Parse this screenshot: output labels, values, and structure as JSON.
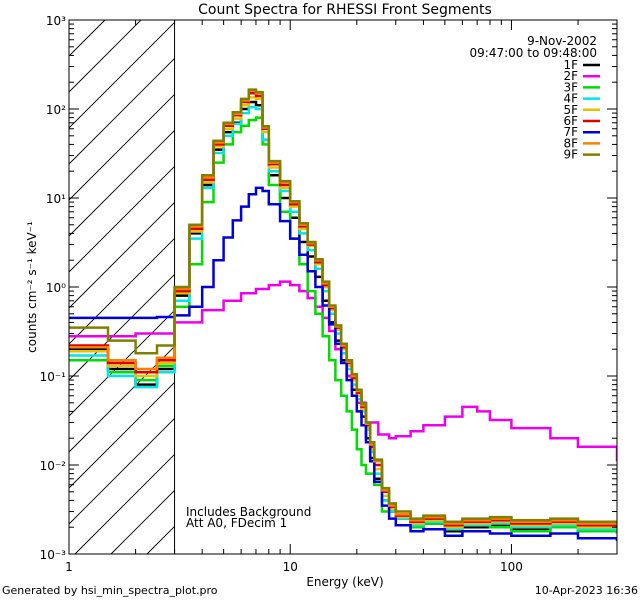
{
  "chart_data": {
    "type": "line",
    "title": "Count Spectra for RHESSI Front Segments",
    "xlabel": "Energy (keV)",
    "ylabel": "counts cm⁻² s⁻¹ keV⁻¹",
    "x_scale": "log",
    "y_scale": "log",
    "xlim": [
      1,
      300
    ],
    "ylim": [
      0.001,
      1000
    ],
    "x_ticks": [
      {
        "value": 1,
        "label": "1"
      },
      {
        "value": 10,
        "label": "10"
      },
      {
        "value": 100,
        "label": "100"
      }
    ],
    "y_ticks": [
      {
        "value": 0.001,
        "label": "10⁻³"
      },
      {
        "value": 0.01,
        "label": "10⁻²"
      },
      {
        "value": 0.1,
        "label": "10⁻¹"
      },
      {
        "value": 1,
        "label": "10⁰"
      },
      {
        "value": 10,
        "label": "10¹"
      },
      {
        "value": 100,
        "label": "10²"
      },
      {
        "value": 1000,
        "label": "10³"
      }
    ],
    "date_label": "9-Nov-2002",
    "time_range_label": "09:47:00 to 09:48:00",
    "shaded_region": {
      "x_from": 1,
      "x_to": 3
    },
    "annotations": [
      "Includes Background",
      "Att A0, FDecim 1"
    ],
    "series": [
      {
        "name": "1F",
        "color": "#000000",
        "x": [
          1,
          1.5,
          2,
          2.5,
          3,
          3.5,
          4,
          4.5,
          5,
          5.5,
          6,
          6.5,
          7,
          7.5,
          8,
          9,
          10,
          11,
          12,
          13,
          14,
          15,
          16,
          17,
          18,
          19,
          20,
          21,
          22,
          23,
          24,
          26,
          28,
          30,
          35,
          40,
          50,
          60,
          80,
          100,
          150,
          200,
          300
        ],
        "y": [
          0.2,
          0.12,
          0.08,
          0.12,
          0.8,
          4.0,
          14,
          35,
          55,
          70,
          100,
          120,
          110,
          45,
          18,
          10,
          6,
          3.2,
          2.2,
          1.3,
          0.7,
          0.4,
          0.25,
          0.15,
          0.1,
          0.07,
          0.05,
          0.035,
          0.02,
          0.012,
          0.007,
          0.004,
          0.003,
          0.0025,
          0.002,
          0.0022,
          0.0018,
          0.002,
          0.0021,
          0.0019,
          0.002,
          0.0018,
          0.0017
        ]
      },
      {
        "name": "2F",
        "color": "#ee00ee",
        "x": [
          1,
          2,
          3,
          4,
          5,
          6,
          7,
          8,
          9,
          10,
          11,
          12,
          13,
          14,
          15,
          16,
          18,
          20,
          22,
          25,
          28,
          30,
          35,
          40,
          50,
          60,
          70,
          80,
          100,
          150,
          200,
          300
        ],
        "y": [
          0.28,
          0.3,
          0.4,
          0.55,
          0.7,
          0.85,
          0.95,
          1.05,
          1.15,
          1.05,
          0.9,
          0.75,
          0.6,
          0.45,
          0.32,
          0.2,
          0.1,
          0.05,
          0.03,
          0.022,
          0.02,
          0.021,
          0.024,
          0.028,
          0.035,
          0.045,
          0.04,
          0.032,
          0.026,
          0.02,
          0.016,
          0.011
        ]
      },
      {
        "name": "3F",
        "color": "#00dd00",
        "x": [
          1,
          1.5,
          2,
          2.5,
          3,
          3.5,
          4,
          4.5,
          5,
          5.5,
          6,
          6.5,
          7,
          7.5,
          8,
          9,
          10,
          11,
          12,
          13,
          14,
          15,
          16,
          17,
          18,
          19,
          20,
          21,
          22,
          24,
          26,
          30,
          35,
          40,
          50,
          60,
          80,
          100,
          150,
          200,
          300
        ],
        "y": [
          0.15,
          0.11,
          0.09,
          0.13,
          0.6,
          1.8,
          9,
          25,
          40,
          55,
          65,
          75,
          80,
          40,
          14,
          7,
          3.5,
          1.8,
          0.9,
          0.5,
          0.28,
          0.15,
          0.09,
          0.06,
          0.04,
          0.025,
          0.015,
          0.01,
          0.008,
          0.006,
          0.003,
          0.0025,
          0.002,
          0.0022,
          0.0019,
          0.0021,
          0.002,
          0.0018,
          0.002,
          0.0018,
          0.0017
        ]
      },
      {
        "name": "4F",
        "color": "#00e5e5",
        "x": [
          1,
          1.5,
          2,
          2.5,
          3,
          3.5,
          4,
          4.5,
          5,
          5.5,
          6,
          6.5,
          7,
          7.5,
          8,
          9,
          10,
          11,
          12,
          13,
          14,
          15,
          16,
          17,
          18,
          19,
          20,
          21,
          22,
          23,
          24,
          26,
          28,
          30,
          35,
          40,
          50,
          60,
          80,
          100,
          150,
          200,
          300
        ],
        "y": [
          0.17,
          0.1,
          0.075,
          0.11,
          0.7,
          3.5,
          13,
          32,
          50,
          68,
          90,
          105,
          100,
          45,
          20,
          12,
          7,
          4,
          2.6,
          1.6,
          0.9,
          0.5,
          0.3,
          0.18,
          0.12,
          0.08,
          0.055,
          0.04,
          0.025,
          0.014,
          0.008,
          0.004,
          0.003,
          0.0025,
          0.0021,
          0.0023,
          0.0019,
          0.0021,
          0.0022,
          0.002,
          0.0021,
          0.0019,
          0.0018
        ]
      },
      {
        "name": "5F",
        "color": "#e5c300",
        "x": [
          1,
          1.5,
          2,
          2.5,
          3,
          3.5,
          4,
          4.5,
          5,
          5.5,
          6,
          6.5,
          7,
          7.5,
          8,
          9,
          10,
          11,
          12,
          13,
          14,
          15,
          16,
          17,
          18,
          19,
          20,
          21,
          22,
          23,
          24,
          26,
          28,
          30,
          35,
          40,
          50,
          60,
          80,
          100,
          150,
          200,
          300
        ],
        "y": [
          0.19,
          0.13,
          0.1,
          0.14,
          0.85,
          4.2,
          15,
          38,
          60,
          78,
          110,
          135,
          130,
          55,
          22,
          13,
          8,
          4.5,
          2.9,
          1.8,
          1.0,
          0.55,
          0.33,
          0.2,
          0.13,
          0.09,
          0.06,
          0.042,
          0.026,
          0.015,
          0.009,
          0.0045,
          0.0032,
          0.0026,
          0.0022,
          0.0024,
          0.002,
          0.0022,
          0.0023,
          0.0021,
          0.0022,
          0.002,
          0.0019
        ]
      },
      {
        "name": "6F",
        "color": "#e00000",
        "x": [
          1,
          1.5,
          2,
          2.5,
          3,
          3.5,
          4,
          4.5,
          5,
          5.5,
          6,
          6.5,
          7,
          7.5,
          8,
          9,
          10,
          11,
          12,
          13,
          14,
          15,
          16,
          17,
          18,
          19,
          20,
          21,
          22,
          23,
          24,
          26,
          28,
          30,
          35,
          40,
          50,
          60,
          80,
          100,
          150,
          200,
          300
        ],
        "y": [
          0.22,
          0.14,
          0.11,
          0.15,
          0.9,
          4.5,
          16,
          40,
          65,
          85,
          120,
          150,
          140,
          60,
          24,
          14,
          8.5,
          4.8,
          3.0,
          1.9,
          1.05,
          0.58,
          0.35,
          0.21,
          0.14,
          0.095,
          0.065,
          0.045,
          0.028,
          0.016,
          0.01,
          0.005,
          0.0034,
          0.0027,
          0.0023,
          0.0025,
          0.0021,
          0.0023,
          0.0024,
          0.0022,
          0.0023,
          0.0021,
          0.002
        ]
      },
      {
        "name": "7F",
        "color": "#0000dd",
        "x": [
          1,
          1.5,
          2,
          2.5,
          3,
          3.5,
          4,
          4.5,
          5,
          5.5,
          6,
          6.5,
          7,
          7.5,
          8,
          9,
          10,
          11,
          12,
          13,
          14,
          15,
          16,
          17,
          18,
          19,
          20,
          21,
          22,
          23,
          24,
          26,
          28,
          30,
          35,
          40,
          50,
          60,
          80,
          100,
          150,
          200,
          300
        ],
        "y": [
          0.45,
          0.45,
          0.45,
          0.46,
          0.48,
          0.6,
          1.0,
          2.0,
          3.6,
          5.6,
          8,
          11,
          13,
          12,
          8.5,
          5.5,
          3.5,
          2.3,
          1.5,
          1.0,
          0.62,
          0.38,
          0.23,
          0.14,
          0.09,
          0.06,
          0.04,
          0.028,
          0.018,
          0.011,
          0.0065,
          0.0035,
          0.0025,
          0.0021,
          0.0018,
          0.0019,
          0.0016,
          0.0018,
          0.0017,
          0.0016,
          0.0017,
          0.0015,
          0.0014
        ]
      },
      {
        "name": "8F",
        "color": "#ff7f00",
        "x": [
          1,
          1.5,
          2,
          2.5,
          3,
          3.5,
          4,
          4.5,
          5,
          5.5,
          6,
          6.5,
          7,
          7.5,
          8,
          9,
          10,
          11,
          12,
          13,
          14,
          15,
          16,
          17,
          18,
          19,
          20,
          21,
          22,
          23,
          24,
          26,
          28,
          30,
          35,
          40,
          50,
          60,
          80,
          100,
          150,
          200,
          300
        ],
        "y": [
          0.21,
          0.15,
          0.12,
          0.16,
          0.95,
          4.8,
          17,
          42,
          68,
          88,
          125,
          160,
          150,
          62,
          25,
          15,
          9,
          5,
          3.1,
          2.0,
          1.1,
          0.6,
          0.36,
          0.22,
          0.145,
          0.1,
          0.068,
          0.047,
          0.029,
          0.017,
          0.011,
          0.0052,
          0.0035,
          0.0028,
          0.0024,
          0.0026,
          0.0022,
          0.0024,
          0.0025,
          0.0023,
          0.0024,
          0.0022,
          0.0021
        ]
      },
      {
        "name": "9F",
        "color": "#808000",
        "x": [
          1,
          1.5,
          2,
          2.5,
          3,
          3.5,
          4,
          4.5,
          5,
          5.5,
          6,
          6.5,
          7,
          7.5,
          8,
          9,
          10,
          11,
          12,
          13,
          14,
          15,
          16,
          17,
          18,
          19,
          20,
          21,
          22,
          23,
          24,
          26,
          28,
          30,
          35,
          40,
          50,
          60,
          80,
          100,
          150,
          200,
          300
        ],
        "y": [
          0.35,
          0.25,
          0.18,
          0.22,
          1.0,
          5.0,
          18,
          44,
          70,
          92,
          130,
          165,
          155,
          64,
          26,
          15.5,
          9.2,
          5.2,
          3.2,
          2.05,
          1.15,
          0.62,
          0.37,
          0.23,
          0.15,
          0.105,
          0.07,
          0.049,
          0.03,
          0.018,
          0.0115,
          0.0055,
          0.0037,
          0.003,
          0.0025,
          0.0027,
          0.0023,
          0.0025,
          0.0026,
          0.0024,
          0.0025,
          0.0023,
          0.0022
        ]
      }
    ]
  },
  "footer": {
    "generated_by": "Generated by hsi_min_spectra_plot.pro",
    "date": "10-Apr-2023 16:36"
  }
}
